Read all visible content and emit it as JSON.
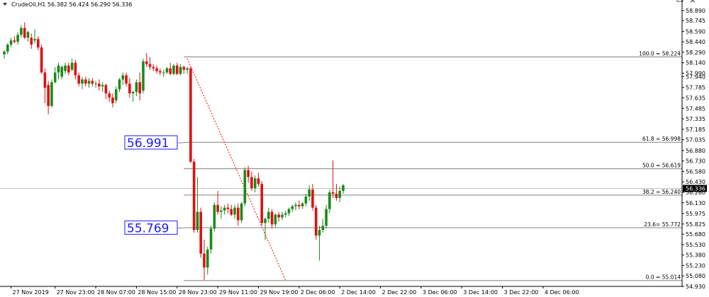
{
  "window": {
    "title": "CrudeOil,H1  56.382 56.424 56.290 56.336",
    "controls": [
      "restore",
      "close"
    ]
  },
  "annotations": {
    "label_upper": "56.991",
    "label_lower": "55.769"
  },
  "chart_data": {
    "type": "candlestick",
    "symbol": "CrudeOil",
    "timeframe": "H1",
    "ylim": [
      54.93,
      59.0
    ],
    "grid": false,
    "current_price": 56.336,
    "current_price_label": "56.336",
    "colors": {
      "bull": "#1a8a1a",
      "bear": "#e01010",
      "fib_line": "#808080",
      "trend": "#ff0000",
      "label": "#1a1aff"
    },
    "y_ticks": [
      {
        "value": 58.89,
        "label": "58.890"
      },
      {
        "value": 58.745,
        "label": "58.745"
      },
      {
        "value": 58.59,
        "label": "58.590"
      },
      {
        "value": 58.44,
        "label": "58.440"
      },
      {
        "value": 58.29,
        "label": "58.290"
      },
      {
        "value": 58.14,
        "label": "58.140"
      },
      {
        "value": 57.99,
        "label": "57.990"
      },
      {
        "value": 57.94,
        "label": "57.940"
      },
      {
        "value": 57.785,
        "label": "57.785"
      },
      {
        "value": 57.635,
        "label": "57.635"
      },
      {
        "value": 57.485,
        "label": "57.485"
      },
      {
        "value": 57.335,
        "label": "57.335"
      },
      {
        "value": 57.185,
        "label": "57.185"
      },
      {
        "value": 57.035,
        "label": "57.035"
      },
      {
        "value": 56.88,
        "label": "56.880"
      },
      {
        "value": 56.73,
        "label": "56.730"
      },
      {
        "value": 56.58,
        "label": "56.580"
      },
      {
        "value": 56.43,
        "label": "56.430"
      },
      {
        "value": 56.28,
        "label": "56.280"
      },
      {
        "value": 56.13,
        "label": "56.130"
      },
      {
        "value": 55.975,
        "label": "55.975"
      },
      {
        "value": 55.825,
        "label": "55.825"
      },
      {
        "value": 55.68,
        "label": "55.680"
      },
      {
        "value": 55.53,
        "label": "55.530"
      },
      {
        "value": 55.38,
        "label": "55.380"
      },
      {
        "value": 55.23,
        "label": "55.230"
      },
      {
        "value": 55.08,
        "label": "55.080"
      },
      {
        "value": 54.93,
        "label": "54.930"
      }
    ],
    "x_labels": [
      {
        "bar": 2,
        "label": "27 Nov 2019"
      },
      {
        "bar": 15,
        "label": "27 Nov 23:00"
      },
      {
        "bar": 27,
        "label": "28 Nov 07:00"
      },
      {
        "bar": 39,
        "label": "28 Nov 15:00"
      },
      {
        "bar": 51,
        "label": "28 Nov 23:00"
      },
      {
        "bar": 63,
        "label": "29 Nov 11:00"
      },
      {
        "bar": 75,
        "label": "29 Nov 19:00"
      },
      {
        "bar": 87,
        "label": "2 Dec 06:00"
      },
      {
        "bar": 99,
        "label": "2 Dec 14:00"
      },
      {
        "bar": 111,
        "label": "2 Dec 22:00"
      },
      {
        "bar": 123,
        "label": "3 Dec 06:00"
      },
      {
        "bar": 135,
        "label": "3 Dec 14:00"
      },
      {
        "bar": 147,
        "label": "3 Dec 22:00"
      },
      {
        "bar": 159,
        "label": "4 Dec 06:00"
      }
    ],
    "fibonacci": [
      {
        "value": 58.224,
        "label": "100.0 = 58.224"
      },
      {
        "value": 56.998,
        "label": "61.8 = 56.998"
      },
      {
        "value": 56.619,
        "label": "50.0 = 56.619"
      },
      {
        "value": 56.24,
        "label": "38.2 = 56.240"
      },
      {
        "value": 55.772,
        "label": "23.6= 55.772"
      },
      {
        "value": 55.014,
        "label": "0.0 = 55.014"
      }
    ],
    "fib_start_bar": 53,
    "trendline": {
      "from": {
        "bar": 54,
        "price": 58.2
      },
      "to": {
        "bar": 83,
        "price": 55.02
      }
    },
    "candles": [
      [
        58.26,
        58.32,
        58.2,
        58.3
      ],
      [
        58.3,
        58.42,
        58.26,
        58.4
      ],
      [
        58.4,
        58.5,
        58.36,
        58.46
      ],
      [
        58.46,
        58.52,
        58.42,
        58.44
      ],
      [
        58.44,
        58.58,
        58.4,
        58.54
      ],
      [
        58.54,
        58.68,
        58.5,
        58.64
      ],
      [
        58.64,
        58.72,
        58.48,
        58.5
      ],
      [
        58.5,
        58.6,
        58.44,
        58.58
      ],
      [
        58.5,
        58.56,
        58.34,
        58.4
      ],
      [
        58.46,
        58.62,
        58.42,
        58.48
      ],
      [
        58.48,
        58.52,
        58.32,
        58.36
      ],
      [
        58.36,
        58.4,
        57.98,
        58.0
      ],
      [
        58.0,
        58.06,
        57.56,
        57.78
      ],
      [
        57.82,
        57.88,
        57.4,
        57.52
      ],
      [
        57.52,
        57.9,
        57.5,
        57.86
      ],
      [
        57.86,
        58.08,
        57.84,
        58.0
      ],
      [
        58.0,
        58.14,
        57.9,
        58.1
      ],
      [
        57.94,
        58.1,
        57.9,
        58.08
      ],
      [
        58.02,
        58.14,
        57.98,
        58.1
      ],
      [
        58.1,
        58.14,
        57.96,
        58.0
      ],
      [
        58.04,
        58.2,
        58.02,
        58.14
      ],
      [
        58.14,
        58.18,
        57.9,
        57.96
      ],
      [
        57.96,
        58.0,
        57.8,
        57.84
      ],
      [
        57.84,
        57.94,
        57.76,
        57.9
      ],
      [
        57.9,
        57.94,
        57.8,
        57.84
      ],
      [
        57.84,
        57.92,
        57.78,
        57.88
      ],
      [
        57.88,
        57.92,
        57.8,
        57.84
      ],
      [
        57.84,
        57.88,
        57.78,
        57.84
      ],
      [
        57.84,
        57.9,
        57.74,
        57.8
      ],
      [
        57.8,
        57.86,
        57.72,
        57.82
      ],
      [
        57.82,
        57.84,
        57.62,
        57.7
      ],
      [
        57.7,
        57.74,
        57.58,
        57.64
      ],
      [
        57.64,
        57.7,
        57.5,
        57.56
      ],
      [
        57.6,
        57.8,
        57.56,
        57.76
      ],
      [
        57.76,
        57.92,
        57.72,
        57.9
      ],
      [
        57.9,
        58.0,
        57.82,
        57.96
      ],
      [
        57.96,
        58.0,
        57.8,
        57.84
      ],
      [
        57.84,
        57.92,
        57.64,
        57.7
      ],
      [
        57.7,
        57.74,
        57.58,
        57.72
      ],
      [
        57.72,
        57.9,
        57.66,
        57.86
      ],
      [
        57.86,
        58.0,
        57.6,
        57.7
      ],
      [
        57.74,
        58.2,
        57.7,
        58.16
      ],
      [
        58.16,
        58.28,
        58.08,
        58.12
      ],
      [
        58.12,
        58.22,
        58.04,
        58.08
      ],
      [
        58.08,
        58.12,
        58.02,
        58.06
      ],
      [
        58.06,
        58.1,
        57.98,
        58.02
      ],
      [
        58.02,
        58.06,
        57.96,
        58.0
      ],
      [
        58.0,
        58.04,
        57.94,
        58.0
      ],
      [
        58.0,
        58.08,
        57.98,
        58.06
      ],
      [
        58.06,
        58.14,
        57.96,
        57.98
      ],
      [
        57.98,
        58.12,
        57.96,
        58.1
      ],
      [
        58.1,
        58.14,
        57.96,
        57.98
      ],
      [
        57.98,
        58.12,
        57.96,
        58.08
      ],
      [
        58.08,
        58.1,
        57.98,
        58.04
      ],
      [
        58.04,
        58.08,
        57.98,
        58.06
      ],
      [
        58.06,
        58.08,
        56.7,
        56.72
      ],
      [
        56.72,
        56.76,
        55.7,
        55.74
      ],
      [
        55.74,
        56.5,
        55.7,
        56.0
      ],
      [
        56.0,
        56.06,
        55.34,
        55.4
      ],
      [
        55.4,
        55.6,
        55.02,
        55.2
      ],
      [
        55.2,
        55.5,
        55.1,
        55.46
      ],
      [
        55.46,
        55.8,
        55.4,
        55.76
      ],
      [
        55.76,
        56.14,
        55.72,
        56.1
      ],
      [
        56.1,
        56.3,
        55.96,
        56.0
      ],
      [
        56.0,
        56.08,
        55.9,
        56.02
      ],
      [
        56.02,
        56.1,
        55.96,
        56.06
      ],
      [
        56.06,
        56.12,
        55.98,
        56.04
      ],
      [
        56.04,
        56.1,
        55.94,
        55.96
      ],
      [
        55.96,
        56.1,
        55.9,
        56.06
      ],
      [
        56.06,
        56.12,
        55.8,
        55.88
      ],
      [
        55.88,
        56.14,
        55.84,
        56.12
      ],
      [
        56.12,
        56.64,
        56.08,
        56.6
      ],
      [
        56.6,
        56.66,
        56.42,
        56.5
      ],
      [
        56.5,
        56.58,
        56.3,
        56.34
      ],
      [
        56.34,
        56.52,
        56.28,
        56.48
      ],
      [
        56.48,
        56.56,
        56.36,
        56.4
      ],
      [
        56.4,
        56.44,
        55.8,
        55.84
      ],
      [
        55.84,
        55.92,
        55.6,
        55.9
      ],
      [
        55.9,
        56.06,
        55.84,
        56.0
      ],
      [
        56.0,
        56.04,
        55.76,
        55.82
      ],
      [
        55.82,
        55.98,
        55.78,
        55.96
      ],
      [
        55.96,
        56.0,
        55.86,
        55.92
      ],
      [
        55.92,
        56.0,
        55.88,
        55.96
      ],
      [
        55.96,
        56.02,
        55.92,
        55.98
      ],
      [
        55.98,
        56.06,
        55.94,
        56.04
      ],
      [
        56.04,
        56.1,
        56.0,
        56.08
      ],
      [
        56.08,
        56.14,
        56.02,
        56.1
      ],
      [
        56.1,
        56.16,
        56.04,
        56.08
      ],
      [
        56.08,
        56.14,
        56.04,
        56.12
      ],
      [
        56.12,
        56.26,
        56.08,
        56.22
      ],
      [
        56.22,
        56.38,
        56.16,
        56.32
      ],
      [
        56.32,
        56.4,
        56.02,
        56.06
      ],
      [
        56.06,
        56.1,
        55.6,
        55.66
      ],
      [
        55.66,
        55.8,
        55.3,
        55.74
      ],
      [
        55.74,
        55.9,
        55.7,
        55.8
      ],
      [
        55.8,
        56.1,
        55.76,
        56.04
      ],
      [
        56.04,
        56.32,
        55.98,
        56.28
      ],
      [
        56.28,
        56.74,
        56.2,
        56.26
      ],
      [
        56.26,
        56.4,
        56.16,
        56.2
      ],
      [
        56.2,
        56.36,
        56.14,
        56.3
      ],
      [
        56.3,
        56.4,
        56.26,
        56.38
      ]
    ]
  }
}
